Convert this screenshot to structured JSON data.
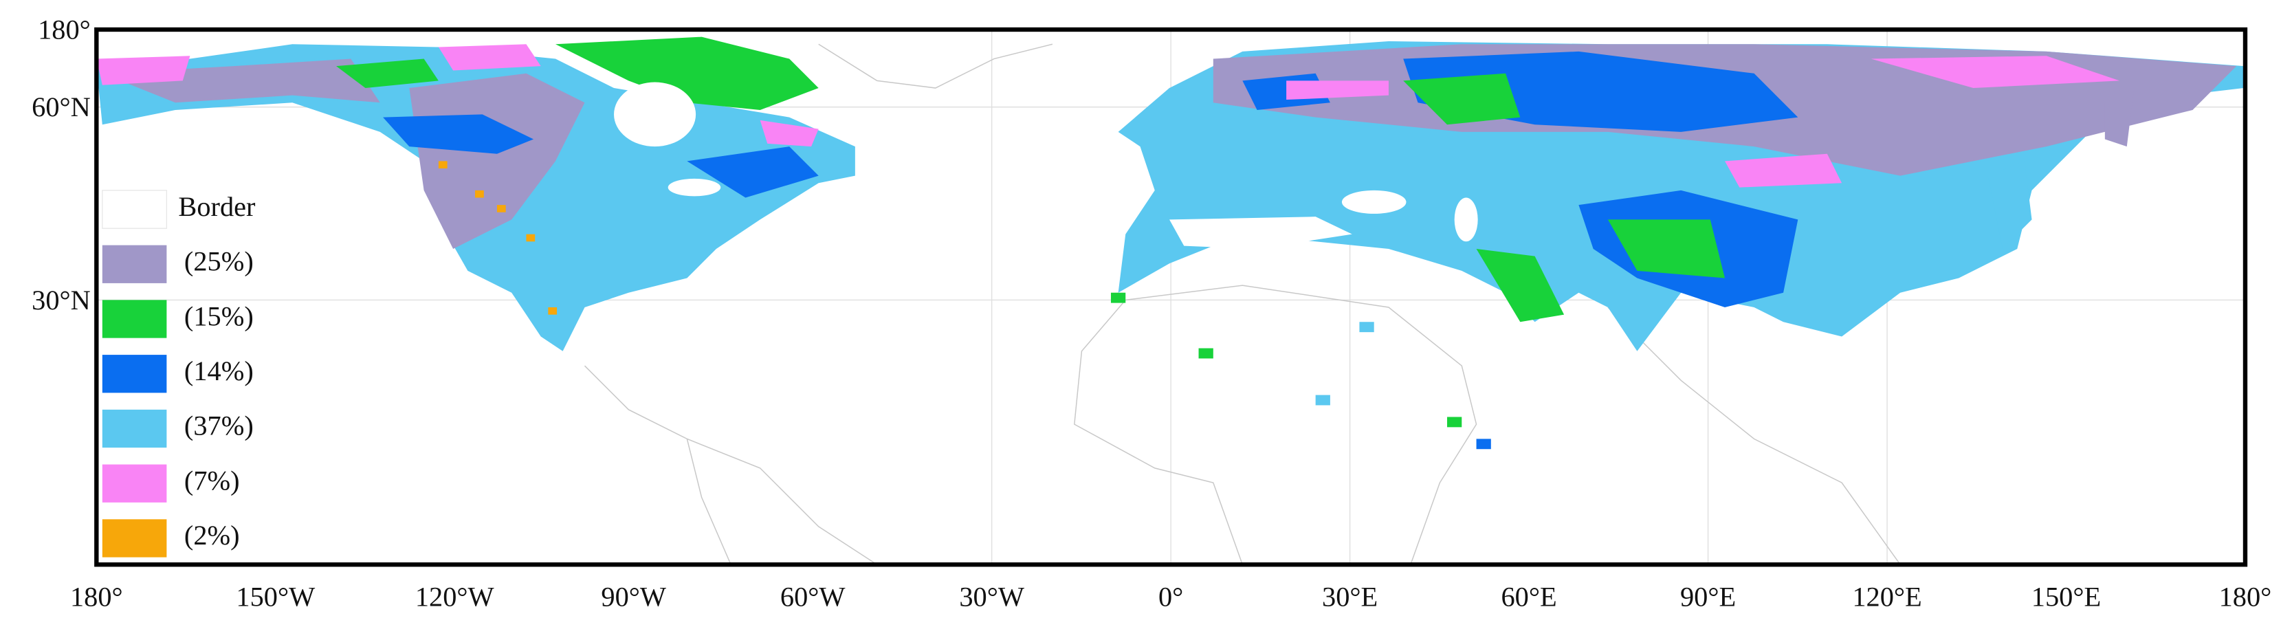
{
  "map": {
    "lat_labels": [
      "180°",
      "60°N",
      "30°N"
    ],
    "lon_labels": [
      "180°",
      "150°W",
      "120°W",
      "90°W",
      "60°W",
      "30°W",
      "0°",
      "30°E",
      "60°E",
      "90°E",
      "120°E",
      "150°E",
      "180°"
    ],
    "legend": [
      {
        "label": "Border",
        "color": "#ffffff"
      },
      {
        "label": "(25%)",
        "color": "#a097c8"
      },
      {
        "label": "(15%)",
        "color": "#18d23a"
      },
      {
        "label": "(14%)",
        "color": "#0a6ef0"
      },
      {
        "label": "(37%)",
        "color": "#5bc8f0"
      },
      {
        "label": "(7%)",
        "color": "#f984f5"
      },
      {
        "label": "(2%)",
        "color": "#f7a70a"
      }
    ]
  }
}
